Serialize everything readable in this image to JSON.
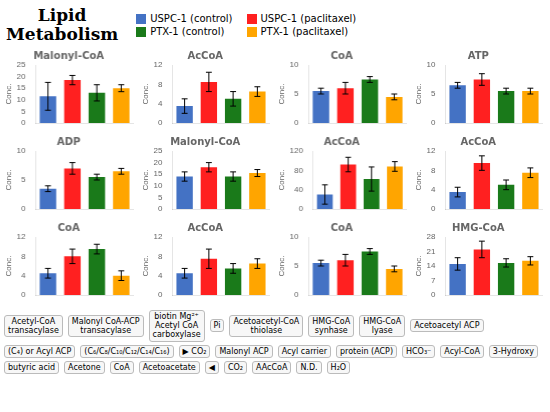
{
  "title": "Lipid\nMetabolism",
  "legend": "top",
  "annotations": [
    "Acetyl-CoA\ntransacylase",
    "Malonyl CoA-ACP\ntransacylase",
    "biotin Mg²⁺\nAcetyl CoA\ncarboxylase",
    "Pi",
    "Acetoacetyl-CoA\nthiolase",
    "HMG-CoA\nsynhase",
    "HMG-CoA\nlyase",
    "Acetoacetyl ACP",
    "(C₄) or Acyl ACP",
    "(C₆/C₈/C₁₀/C₁₂/C₁₄/C₁₆)",
    "▶ CO₂",
    "Malonyl ACP",
    "Acyl carrier",
    "protein (ACP)",
    "HCO₃⁻",
    "Acyl-CoA",
    "3-Hydroxy",
    "butyric acid",
    "Acetone",
    "CoA",
    "Acetoacetate",
    "◀",
    "CO₂",
    "AAcCoA",
    "N.D.",
    "H₂O"
  ],
  "chart_data": [
    {
      "type": "bar",
      "title": "Malonyl-CoA",
      "ylabel": "Conc.",
      "categories": [
        "USPC-1 (control)",
        "USPC-1 (paclitaxel)",
        "PTX-1 (control)",
        "PTX-1 (paclitaxel)"
      ],
      "values": [
        11.5,
        18.5,
        13.0,
        15.0
      ],
      "errors": [
        6.0,
        2.0,
        3.5,
        1.5
      ],
      "colors": [
        "#4472c4",
        "#ff2020",
        "#1a7a1a",
        "#ffa500"
      ],
      "ylim": [
        0,
        25
      ],
      "yticks": [
        0,
        5,
        10,
        15,
        20,
        25
      ],
      "grid": false,
      "tick_labels": "y"
    },
    {
      "type": "bar",
      "title": "AcCoA",
      "ylabel": "Conc.",
      "categories": [
        "USPC-1 (control)",
        "USPC-1 (paclitaxel)",
        "PTX-1 (control)",
        "PTX-1 (paclitaxel)"
      ],
      "values": [
        3.5,
        8.5,
        5.0,
        6.5
      ],
      "errors": [
        1.5,
        2.0,
        1.5,
        1.0
      ],
      "colors": [
        "#4472c4",
        "#ff2020",
        "#1a7a1a",
        "#ffa500"
      ],
      "ylim": [
        0,
        12
      ],
      "yticks": [
        0,
        4,
        8,
        12
      ],
      "grid": false,
      "tick_labels": "y"
    },
    {
      "type": "bar",
      "title": "CoA",
      "ylabel": "Conc.",
      "categories": [
        "USPC-1 (control)",
        "USPC-1 (paclitaxel)",
        "PTX-1 (control)",
        "PTX-1 (paclitaxel)"
      ],
      "values": [
        5.5,
        6.0,
        7.5,
        4.5
      ],
      "errors": [
        0.5,
        1.0,
        0.5,
        0.5
      ],
      "colors": [
        "#4472c4",
        "#ff2020",
        "#1a7a1a",
        "#ffa500"
      ],
      "ylim": [
        0,
        10
      ],
      "yticks": [
        0,
        5,
        10
      ],
      "grid": false,
      "tick_labels": "y"
    },
    {
      "type": "bar",
      "title": "ATP",
      "ylabel": "Conc.",
      "categories": [
        "USPC-1 (control)",
        "USPC-1 (paclitaxel)",
        "PTX-1 (control)",
        "PTX-1 (paclitaxel)"
      ],
      "values": [
        6.5,
        7.5,
        5.5,
        5.5
      ],
      "errors": [
        0.5,
        1.0,
        0.5,
        0.5
      ],
      "colors": [
        "#4472c4",
        "#ff2020",
        "#1a7a1a",
        "#ffa500"
      ],
      "ylim": [
        0,
        10
      ],
      "yticks": [
        0,
        5,
        10
      ],
      "grid": false,
      "tick_labels": "y"
    },
    {
      "type": "bar",
      "title": "ADP",
      "ylabel": "Conc.",
      "categories": [
        "USPC-1 (control)",
        "USPC-1 (paclitaxel)",
        "PTX-1 (control)",
        "PTX-1 (paclitaxel)"
      ],
      "values": [
        3.5,
        7.0,
        5.5,
        6.5
      ],
      "errors": [
        0.5,
        1.0,
        0.5,
        0.5
      ],
      "colors": [
        "#4472c4",
        "#ff2020",
        "#1a7a1a",
        "#ffa500"
      ],
      "ylim": [
        0,
        10
      ],
      "yticks": [
        0,
        5,
        10
      ],
      "grid": false,
      "tick_labels": "y"
    },
    {
      "type": "bar",
      "title": "Malonyl-CoA",
      "ylabel": "Conc.",
      "categories": [
        "USPC-1 (control)",
        "USPC-1 (paclitaxel)",
        "PTX-1 (control)",
        "PTX-1 (paclitaxel)"
      ],
      "values": [
        14.0,
        18.0,
        14.0,
        15.5
      ],
      "errors": [
        2.0,
        2.0,
        2.0,
        1.5
      ],
      "colors": [
        "#4472c4",
        "#ff2020",
        "#1a7a1a",
        "#ffa500"
      ],
      "ylim": [
        0,
        25
      ],
      "yticks": [
        0,
        5,
        10,
        15,
        20,
        25
      ],
      "grid": false,
      "tick_labels": "y"
    },
    {
      "type": "bar",
      "title": "AcCoA",
      "ylabel": "Conc.",
      "categories": [
        "USPC-1 (control)",
        "USPC-1 (paclitaxel)",
        "PTX-1 (control)",
        "PTX-1 (paclitaxel)"
      ],
      "values": [
        30,
        92,
        62,
        88
      ],
      "errors": [
        20,
        15,
        25,
        10
      ],
      "colors": [
        "#4472c4",
        "#ff2020",
        "#1a7a1a",
        "#ffa500"
      ],
      "ylim": [
        0,
        120
      ],
      "yticks": [
        0,
        40,
        80,
        120
      ],
      "grid": false,
      "tick_labels": "y"
    },
    {
      "type": "bar",
      "title": "AcCoA",
      "ylabel": "Conc.",
      "categories": [
        "USPC-1 (control)",
        "USPC-1 (paclitaxel)",
        "PTX-1 (control)",
        "PTX-1 (paclitaxel)"
      ],
      "values": [
        3.5,
        9.5,
        5.0,
        7.5
      ],
      "errors": [
        1.0,
        1.5,
        1.0,
        1.0
      ],
      "colors": [
        "#4472c4",
        "#ff2020",
        "#1a7a1a",
        "#ffa500"
      ],
      "ylim": [
        0,
        12
      ],
      "yticks": [
        0,
        4,
        8,
        12
      ],
      "grid": false,
      "tick_labels": "y"
    },
    {
      "type": "bar",
      "title": "CoA",
      "ylabel": "Conc.",
      "categories": [
        "USPC-1 (control)",
        "USPC-1 (paclitaxel)",
        "PTX-1 (control)",
        "PTX-1 (paclitaxel)"
      ],
      "values": [
        4.5,
        8.0,
        9.5,
        4.0
      ],
      "errors": [
        1.0,
        1.5,
        1.0,
        1.0
      ],
      "colors": [
        "#4472c4",
        "#ff2020",
        "#1a7a1a",
        "#ffa500"
      ],
      "ylim": [
        0,
        12
      ],
      "yticks": [
        0,
        4,
        8,
        12
      ],
      "grid": false,
      "tick_labels": "y"
    },
    {
      "type": "bar",
      "title": "AcCoA",
      "ylabel": "Conc.",
      "categories": [
        "USPC-1 (control)",
        "USPC-1 (paclitaxel)",
        "PTX-1 (control)",
        "PTX-1 (paclitaxel)"
      ],
      "values": [
        4.5,
        7.5,
        5.5,
        6.5
      ],
      "errors": [
        1.0,
        2.0,
        1.0,
        1.0
      ],
      "colors": [
        "#4472c4",
        "#ff2020",
        "#1a7a1a",
        "#ffa500"
      ],
      "ylim": [
        0,
        12
      ],
      "yticks": [
        0,
        4,
        8,
        12
      ],
      "grid": false,
      "tick_labels": "y"
    },
    {
      "type": "bar",
      "title": "CoA",
      "ylabel": "Conc.",
      "categories": [
        "USPC-1 (control)",
        "USPC-1 (paclitaxel)",
        "PTX-1 (control)",
        "PTX-1 (paclitaxel)"
      ],
      "values": [
        5.5,
        6.0,
        7.5,
        4.5
      ],
      "errors": [
        0.5,
        1.0,
        0.5,
        0.5
      ],
      "colors": [
        "#4472c4",
        "#ff2020",
        "#1a7a1a",
        "#ffa500"
      ],
      "ylim": [
        0,
        10
      ],
      "yticks": [
        0,
        5,
        10
      ],
      "grid": false,
      "tick_labels": "y"
    },
    {
      "type": "bar",
      "title": "HMG-CoA",
      "ylabel": "Conc.",
      "categories": [
        "USPC-1 (control)",
        "USPC-1 (paclitaxel)",
        "PTX-1 (control)",
        "PTX-1 (paclitaxel)"
      ],
      "values": [
        15.0,
        22.0,
        15.5,
        16.5
      ],
      "errors": [
        3.0,
        4.0,
        2.0,
        2.0
      ],
      "colors": [
        "#4472c4",
        "#ff2020",
        "#1a7a1a",
        "#ffa500"
      ],
      "ylim": [
        0,
        28
      ],
      "yticks": [
        0,
        7,
        14,
        21,
        28
      ],
      "grid": false,
      "tick_labels": "y"
    }
  ]
}
